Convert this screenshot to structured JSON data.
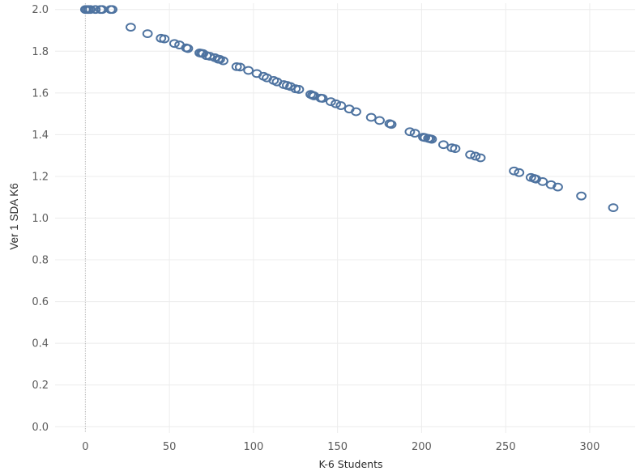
{
  "chart_data": {
    "type": "scatter",
    "title": "",
    "xlabel": "K-6 Students",
    "ylabel": "Ver 1 SDA K6",
    "xlim": [
      -18,
      327
    ],
    "ylim": [
      -0.03,
      2.03
    ],
    "x_ticks": [
      0,
      50,
      100,
      150,
      200,
      250,
      300
    ],
    "y_ticks": [
      0.0,
      0.2,
      0.4,
      0.6,
      0.8,
      1.0,
      1.2,
      1.4,
      1.6,
      1.8,
      2.0
    ],
    "x_tick_labels": [
      "0",
      "50",
      "100",
      "150",
      "200",
      "250",
      "300"
    ],
    "y_tick_labels": [
      "0.0",
      "0.2",
      "0.4",
      "0.6",
      "0.8",
      "1.0",
      "1.2",
      "1.4",
      "1.6",
      "1.8",
      "2.0"
    ],
    "grid": true,
    "zero_line": "dotted vertical line at x = 0",
    "marker": "hollow circle",
    "marker_color": "#4e73a0",
    "gridline_color": "#ececec",
    "x": [
      0,
      1,
      2,
      3,
      6,
      9,
      10,
      15,
      16,
      27,
      37,
      45,
      47,
      53,
      56,
      60,
      61,
      68,
      69,
      70,
      72,
      74,
      77,
      79,
      80,
      82,
      90,
      92,
      97,
      102,
      106,
      108,
      112,
      114,
      118,
      120,
      122,
      125,
      127,
      134,
      135,
      136,
      140,
      141,
      146,
      149,
      152,
      157,
      161,
      170,
      175,
      181,
      182,
      193,
      196,
      201,
      202,
      204,
      205,
      206,
      213,
      218,
      220,
      229,
      232,
      235,
      255,
      258,
      265,
      267,
      268,
      272,
      277,
      281,
      295,
      314
    ],
    "y": [
      2.0,
      2.0,
      2.0,
      2.0,
      2.0,
      2.0,
      2.0,
      2.0,
      2.0,
      1.915,
      1.884,
      1.862,
      1.859,
      1.837,
      1.83,
      1.816,
      1.813,
      1.792,
      1.79,
      1.789,
      1.779,
      1.776,
      1.769,
      1.762,
      1.761,
      1.754,
      1.726,
      1.724,
      1.708,
      1.693,
      1.68,
      1.672,
      1.66,
      1.653,
      1.64,
      1.636,
      1.631,
      1.62,
      1.617,
      1.593,
      1.589,
      1.586,
      1.575,
      1.574,
      1.558,
      1.548,
      1.539,
      1.523,
      1.51,
      1.483,
      1.468,
      1.453,
      1.449,
      1.414,
      1.407,
      1.388,
      1.386,
      1.382,
      1.38,
      1.378,
      1.352,
      1.337,
      1.333,
      1.304,
      1.297,
      1.289,
      1.226,
      1.218,
      1.195,
      1.19,
      1.187,
      1.175,
      1.16,
      1.149,
      1.106,
      1.05
    ]
  }
}
